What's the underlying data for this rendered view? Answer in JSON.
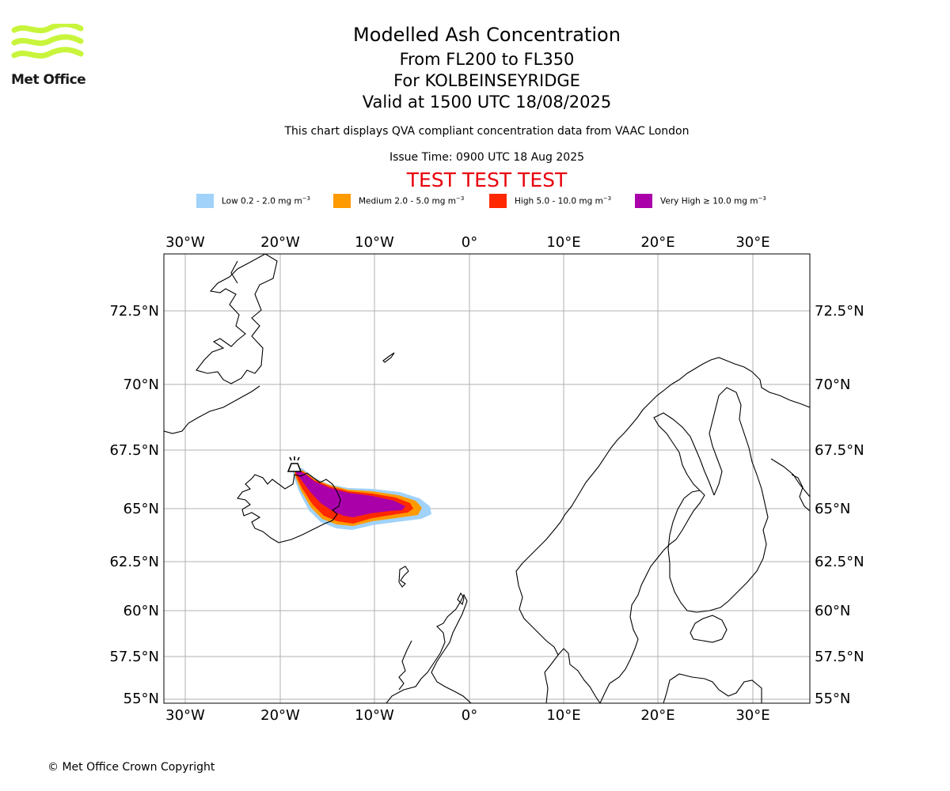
{
  "logo": {
    "text": "Met Office",
    "color": "#c8f53c"
  },
  "header": {
    "title": "Modelled Ash Concentration",
    "levels": "From FL200 to FL350",
    "volcano": "For KOLBEINSEYRIDGE",
    "valid": "Valid at 1500 UTC 18/08/2025",
    "description": "This chart displays QVA compliant concentration data from VAAC London",
    "issue_time": "Issue Time: 0900 UTC 18 Aug 2025",
    "test_banner": "TEST TEST TEST"
  },
  "legend": [
    {
      "label": "Low 0.2 - 2.0 mg m",
      "sup": "−3",
      "color": "#a0d2fa"
    },
    {
      "label": "Medium 2.0 - 5.0 mg m",
      "sup": "−3",
      "color": "#ff9a00"
    },
    {
      "label": "High 5.0 - 10.0 mg m",
      "sup": "−3",
      "color": "#ff2800"
    },
    {
      "label": "Very High  ≥  10.0 mg m",
      "sup": "−3",
      "color": "#aa00aa"
    }
  ],
  "map": {
    "lon_range": [
      -32.3,
      36.2
    ],
    "lat_range": [
      54.9,
      75.0
    ],
    "projection": "mercator",
    "grid": true,
    "lon_ticks": [
      "30°W",
      "20°W",
      "10°W",
      "0°",
      "10°E",
      "20°E",
      "30°E"
    ],
    "lat_ticks": [
      "72.5°N",
      "70°N",
      "67.5°N",
      "65°N",
      "62.5°N",
      "60°N",
      "57.5°N",
      "55°N"
    ],
    "volcano_marker": {
      "name": "KOLBEINSEYRIDGE",
      "symbol": "volcano-icon"
    }
  },
  "footer": {
    "copyright": "© Met Office Crown Copyright"
  }
}
